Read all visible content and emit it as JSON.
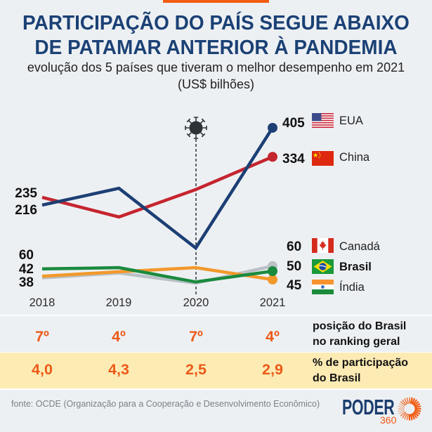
{
  "header": {
    "title_line1": "PARTICIPAÇÃO DO PAÍS SEGUE ABAIXO",
    "title_line2": "DE PATAMAR ANTERIOR À PANDEMIA",
    "subtitle": "evolução dos 5 países que tiveram o melhor desempenho em 2021",
    "unit": "(US$ bilhões)"
  },
  "chart_data": {
    "type": "line",
    "title": "PARTICIPAÇÃO DO PAÍS SEGUE ABAIXO DE PATAMAR ANTERIOR À PANDEMIA",
    "subtitle": "evolução dos 5 países que tiveram o melhor desempenho em 2021 (US$ bilhões)",
    "x": [
      "2018",
      "2019",
      "2020",
      "2021"
    ],
    "xlabel": "",
    "ylabel": "US$ bilhões",
    "ylim": [
      0,
      430
    ],
    "grid": false,
    "legend_position": "right",
    "series": [
      {
        "name": "EUA",
        "color": "#1c3f74",
        "flag": "us-flag",
        "values": [
          216,
          257,
          111,
          405
        ]
      },
      {
        "name": "China",
        "color": "#c5252f",
        "flag": "china-flag",
        "values": [
          235,
          187,
          254,
          334
        ]
      },
      {
        "name": "Canadá",
        "color": "#b9c1c6",
        "flag": "canada-flag",
        "values": [
          38,
          50,
          25,
          60
        ]
      },
      {
        "name": "Brasil",
        "color": "#1a8a3e",
        "flag": "brazil-flag",
        "values": [
          60,
          63,
          28,
          50
        ]
      },
      {
        "name": "Índia",
        "color": "#f2992b",
        "flag": "india-flag",
        "values": [
          42,
          53,
          63,
          45
        ]
      }
    ],
    "annotations": [
      {
        "x": "2020",
        "icon": "virus-icon",
        "meaning": "pandemia",
        "style": "dashed vertical line"
      }
    ]
  },
  "brazil_table": {
    "rows": [
      {
        "label_lines": [
          "posição do Brasil",
          "no ranking geral"
        ],
        "values": [
          "7º",
          "4º",
          "7º",
          "4º"
        ]
      },
      {
        "label_lines": [
          "% de participação",
          "do Brasil"
        ],
        "values": [
          "4,0",
          "4,3",
          "2,5",
          "2,9"
        ]
      }
    ]
  },
  "footer": {
    "source": "fonte: OCDE (Organização para a Cooperação e Desenvolvimento Econômico)"
  },
  "logo": {
    "name": "PODER",
    "sub": "360"
  },
  "colors": {
    "title": "#1b4175",
    "accent_orange": "#ec5a17",
    "highlight_row": "#fdebb4",
    "background": "#edf0f3"
  }
}
